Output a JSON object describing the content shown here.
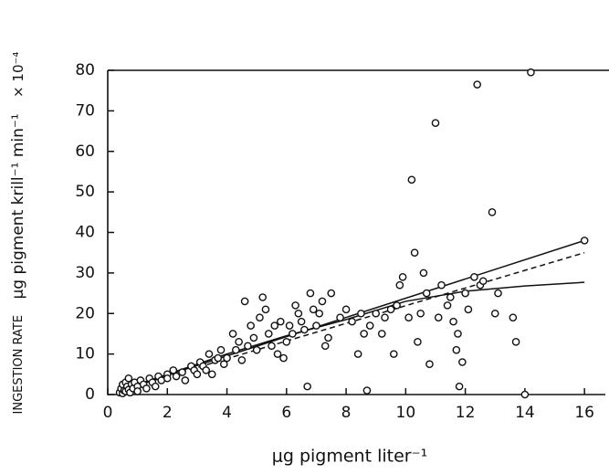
{
  "chart_data": {
    "type": "scatter",
    "x_label": "μg pigment  liter⁻¹",
    "y_label_parts": [
      "INGESTION RATE",
      "μg pigment  krill⁻¹ min⁻¹",
      "× 10⁻⁴"
    ],
    "xlim": [
      0,
      16.7
    ],
    "ylim": [
      0,
      80
    ],
    "xticks": [
      0,
      2,
      4,
      6,
      8,
      10,
      12,
      14,
      16
    ],
    "yticks": [
      0,
      10,
      20,
      30,
      40,
      50,
      60,
      70,
      80
    ],
    "marker_color": "#111111",
    "x": [
      0.4,
      0.45,
      0.5,
      0.5,
      0.55,
      0.6,
      0.6,
      0.65,
      0.7,
      0.7,
      0.75,
      0.8,
      0.85,
      0.9,
      1,
      1,
      1.1,
      1.2,
      1.3,
      1.4,
      1.5,
      1.6,
      1.7,
      1.8,
      2,
      2,
      2.2,
      2.3,
      2.5,
      2.6,
      2.8,
      2.9,
      3,
      3.1,
      3.2,
      3.3,
      3.4,
      3.5,
      3.6,
      3.7,
      3.8,
      3.9,
      4,
      4.2,
      4.3,
      4.4,
      4.5,
      4.6,
      4.7,
      4.8,
      4.9,
      5,
      5.1,
      5.2,
      5.3,
      5.4,
      5.5,
      5.6,
      5.7,
      5.8,
      5.9,
      6,
      6.1,
      6.2,
      6.3,
      6.4,
      6.5,
      6.6,
      6.7,
      6.8,
      6.9,
      7,
      7.1,
      7.2,
      7.3,
      7.4,
      7.5,
      7.8,
      8,
      8.2,
      8.4,
      8.5,
      8.6,
      8.7,
      8.8,
      9,
      9.2,
      9.3,
      9.5,
      9.6,
      9.7,
      9.8,
      9.9,
      10.1,
      10.2,
      10.3,
      10.4,
      10.5,
      10.6,
      10.7,
      10.8,
      11,
      11.1,
      11.2,
      11.4,
      11.5,
      11.6,
      11.7,
      11.75,
      11.8,
      11.9,
      12,
      12.1,
      12.3,
      12.4,
      12.5,
      12.6,
      12.9,
      13,
      13.1,
      13.6,
      13.7,
      14,
      14.2,
      16
    ],
    "values": [
      0.5,
      1.5,
      2.5,
      0.3,
      1,
      3,
      0.8,
      2,
      1.2,
      4,
      0.5,
      2.5,
      1.5,
      3,
      2,
      0.8,
      3.5,
      2.5,
      1.5,
      4,
      3,
      2,
      4.5,
      3.5,
      5,
      4,
      6,
      4.5,
      5.5,
      3.5,
      7,
      6,
      5,
      8,
      7,
      6,
      10,
      5,
      8.5,
      9,
      11,
      7.5,
      9,
      15,
      11,
      13,
      8.5,
      23,
      12,
      17,
      14,
      11,
      19,
      24,
      21,
      15,
      12,
      17,
      10,
      18,
      9,
      13,
      17,
      15,
      22,
      20,
      18,
      16,
      2,
      25,
      21,
      17,
      20,
      23,
      12,
      14,
      25,
      19,
      21,
      18,
      10,
      20,
      15,
      1,
      17,
      20,
      15,
      19,
      21,
      10,
      22,
      27,
      29,
      19,
      53,
      35,
      13,
      20,
      30,
      25,
      7.5,
      67,
      19,
      27,
      22,
      24,
      18,
      11,
      15,
      2,
      8,
      25,
      21,
      29,
      76.5,
      27,
      28,
      45,
      20,
      25,
      19,
      13,
      0,
      79.5,
      38
    ],
    "fit_lines": [
      {
        "style": "solid",
        "x": [
          0.4,
          16
        ],
        "values": [
          1,
          38
        ]
      },
      {
        "style": "dashed",
        "x": [
          0.4,
          16
        ],
        "values": [
          1,
          35
        ]
      },
      {
        "style": "solid",
        "x": [
          0.4,
          2,
          4,
          6,
          8,
          10,
          12,
          14,
          16
        ],
        "values": [
          1,
          5,
          10,
          14.5,
          18.5,
          23,
          25.5,
          26.8,
          27.7
        ]
      }
    ]
  }
}
